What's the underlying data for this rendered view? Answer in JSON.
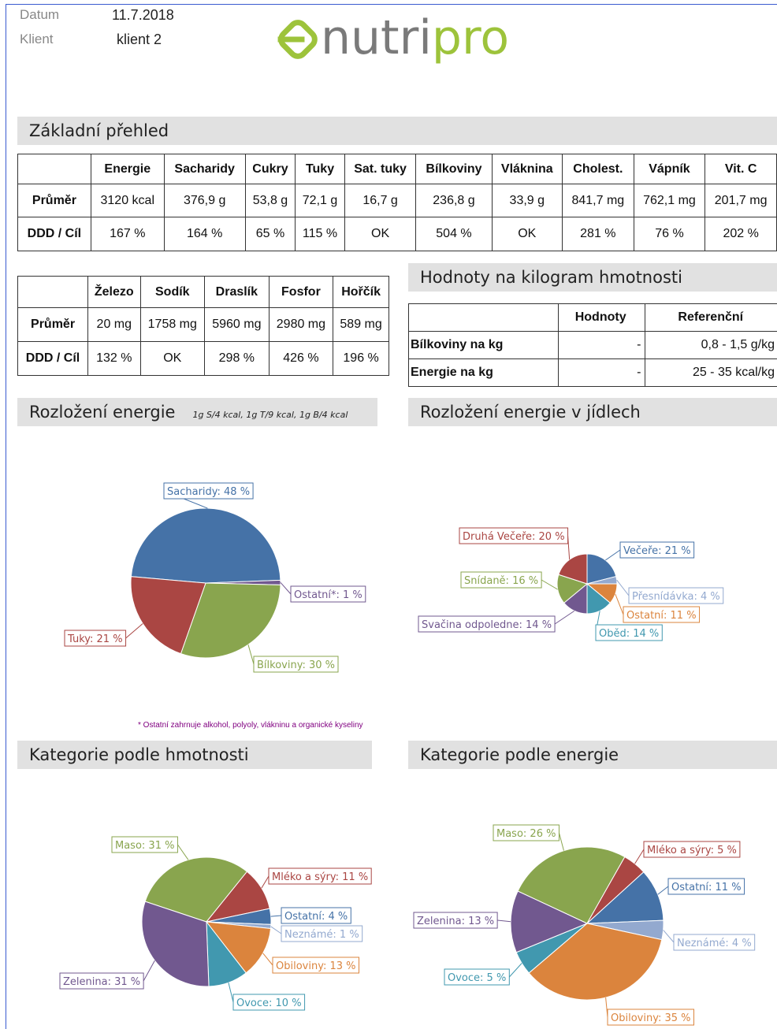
{
  "header": {
    "date_label": "Datum",
    "date": "11.7.2018",
    "client_label": "Klient",
    "client": "klient 2",
    "logo": [
      "nutri",
      "pro"
    ]
  },
  "overview": {
    "title": "Základní přehled",
    "columns": [
      "",
      "Energie",
      "Sacharidy",
      "Cukry",
      "Tuky",
      "Sat. tuky",
      "Bílkoviny",
      "Vláknina",
      "Cholest.",
      "Vápník",
      "Vit. C"
    ],
    "rows": [
      [
        "Průměr",
        "3120 kcal",
        "376,9 g",
        "53,8 g",
        "72,1 g",
        "16,7 g",
        "236,8 g",
        "33,9 g",
        "841,7 mg",
        "762,1 mg",
        "201,7 mg"
      ],
      [
        "DDD / Cíl",
        "167 %",
        "164 %",
        "65 %",
        "115 %",
        "OK",
        "504 %",
        "OK",
        "281 %",
        "76 %",
        "202 %"
      ]
    ]
  },
  "minerals": {
    "columns": [
      "",
      "Železo",
      "Sodík",
      "Draslík",
      "Fosfor",
      "Hořčík"
    ],
    "rows": [
      [
        "Průměr",
        "20 mg",
        "1758 mg",
        "5960 mg",
        "2980 mg",
        "589 mg"
      ],
      [
        "DDD / Cíl",
        "132 %",
        "OK",
        "298 %",
        "426 %",
        "196 %"
      ]
    ]
  },
  "per_kg": {
    "title": "Hodnoty na kilogram hmotnosti",
    "columns": [
      "",
      "Hodnoty",
      "Referenční"
    ],
    "rows": [
      [
        "Bílkoviny na kg",
        "-",
        "0,8 - 1,5 g/kg"
      ],
      [
        "Energie na kg",
        "-",
        "25 - 35 kcal/kg"
      ]
    ]
  },
  "chart_data": [
    {
      "type": "pie",
      "title": "Rozložení energie",
      "subtitle": "1g S/4 kcal, 1g T/9 kcal, 1g B/4 kcal",
      "footnote": "* Ostatní zahrnuje alkohol, polyoly, vlákninu a organické kyseliny",
      "values": [
        48,
        1,
        30,
        21
      ],
      "value_labels": [
        "Sacharidy: 48 %",
        "Ostatní*: 1 %",
        "Bílkoviny: 30 %",
        "Tuky: 21 %"
      ],
      "colors": [
        "#4572a7",
        "#71588f",
        "#89a54e",
        "#aa4643"
      ]
    },
    {
      "type": "pie",
      "title": "Rozložení energie v jídlech",
      "values": [
        21,
        4,
        11,
        14,
        14,
        16,
        20
      ],
      "value_labels": [
        "Večeře: 21 %",
        "Přesnídávka: 4 %",
        "Ostatní: 11 %",
        "Oběd: 14 %",
        "Svačina odpoledne: 14 %",
        "Snídaně: 16 %",
        "Druhá Večeře: 20 %"
      ],
      "colors": [
        "#4572a7",
        "#93a9cf",
        "#db843d",
        "#4198af",
        "#71588f",
        "#89a54e",
        "#aa4643"
      ]
    },
    {
      "type": "pie",
      "title": "Kategorie podle hmotnosti",
      "values": [
        31,
        11,
        4,
        1,
        13,
        10,
        31
      ],
      "value_labels": [
        "Maso: 31 %",
        "Mléko a sýry: 11 %",
        "Ostatní: 4 %",
        "Neznámé: 1 %",
        "Obiloviny: 13 %",
        "Ovoce: 10 %",
        "Zelenina: 31 %"
      ],
      "colors": [
        "#89a54e",
        "#aa4643",
        "#4572a7",
        "#93a9cf",
        "#db843d",
        "#4198af",
        "#71588f"
      ]
    },
    {
      "type": "pie",
      "title": "Kategorie podle energie",
      "values": [
        26,
        5,
        11,
        4,
        35,
        5,
        13
      ],
      "value_labels": [
        "Maso: 26 %",
        "Mléko a sýry: 5 %",
        "Ostatní: 11 %",
        "Neznámé: 4 %",
        "Obiloviny: 35 %",
        "Ovoce: 5 %",
        "Zelenina: 13 %"
      ],
      "colors": [
        "#89a54e",
        "#aa4643",
        "#4572a7",
        "#93a9cf",
        "#db843d",
        "#4198af",
        "#71588f"
      ]
    }
  ]
}
